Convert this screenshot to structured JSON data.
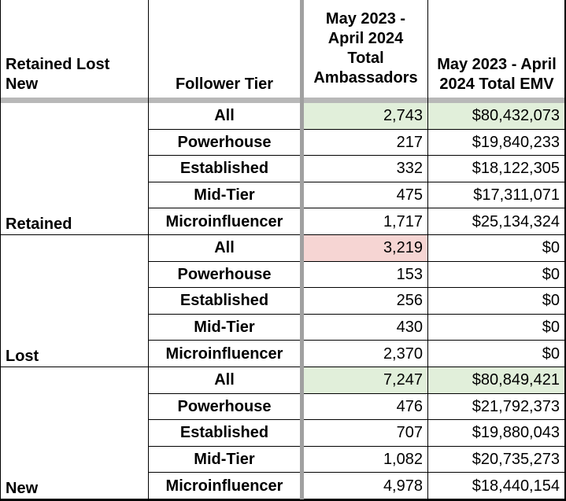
{
  "header": {
    "col_status": "Retained Lost New",
    "col_tier": "Follower Tier",
    "col_ambassadors": "May 2023 - April 2024 Total Ambassadors",
    "col_emv": "May 2023 - April 2024 Total EMV"
  },
  "groups": [
    {
      "label": "Retained",
      "rows": [
        {
          "tier": "All",
          "ambassadors": "2,743",
          "emv": "$80,432,073"
        },
        {
          "tier": "Powerhouse",
          "ambassadors": "217",
          "emv": "$19,840,233"
        },
        {
          "tier": "Established",
          "ambassadors": "332",
          "emv": "$18,122,305"
        },
        {
          "tier": "Mid-Tier",
          "ambassadors": "475",
          "emv": "$17,311,071"
        },
        {
          "tier": "Microinfluencer",
          "ambassadors": "1,717",
          "emv": "$25,134,324"
        }
      ]
    },
    {
      "label": "Lost",
      "rows": [
        {
          "tier": "All",
          "ambassadors": "3,219",
          "emv": "$0"
        },
        {
          "tier": "Powerhouse",
          "ambassadors": "153",
          "emv": "$0"
        },
        {
          "tier": "Established",
          "ambassadors": "256",
          "emv": "$0"
        },
        {
          "tier": "Mid-Tier",
          "ambassadors": "430",
          "emv": "$0"
        },
        {
          "tier": "Microinfluencer",
          "ambassadors": "2,370",
          "emv": "$0"
        }
      ]
    },
    {
      "label": "New",
      "rows": [
        {
          "tier": "All",
          "ambassadors": "7,247",
          "emv": "$80,849,421"
        },
        {
          "tier": "Powerhouse",
          "ambassadors": "476",
          "emv": "$21,792,373"
        },
        {
          "tier": "Established",
          "ambassadors": "707",
          "emv": "$19,880,043"
        },
        {
          "tier": "Mid-Tier",
          "ambassadors": "1,082",
          "emv": "$20,735,273"
        },
        {
          "tier": "Microinfluencer",
          "ambassadors": "4,978",
          "emv": "$18,440,154"
        }
      ]
    }
  ],
  "colors": {
    "highlight_green": "#e1efda",
    "highlight_red": "#f6d5d3"
  }
}
